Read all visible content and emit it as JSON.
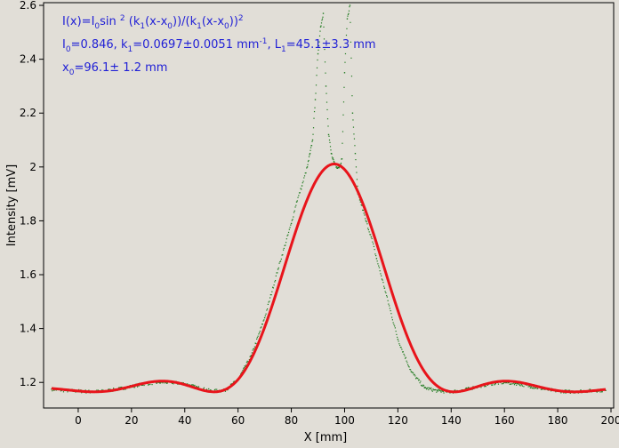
{
  "chart_data": {
    "type": "scatter",
    "xlabel": "X [mm]",
    "ylabel": "Intensity [mV]",
    "xlim": [
      -13,
      201
    ],
    "ylim": [
      1.105,
      2.61
    ],
    "xticks": [
      0,
      20,
      40,
      60,
      80,
      100,
      120,
      140,
      160,
      180,
      200
    ],
    "yticks": [
      1.2,
      1.4,
      1.6,
      1.8,
      2.0,
      2.2,
      2.4,
      2.6
    ],
    "xtick_labels": [
      "0",
      "20",
      "40",
      "60",
      "80",
      "100",
      "120",
      "140",
      "160",
      "180",
      "200"
    ],
    "ytick_labels": [
      "1.2",
      "1.4",
      "1.6",
      "1.8",
      "2",
      "2.2",
      "2.4",
      "2.6"
    ],
    "grid": false,
    "annotations": {
      "formula": {
        "a": "I(x)=I",
        "b": "0",
        "c": "sin ",
        "d": "2",
        "e": " (k",
        "f": "1",
        "g": "(x-x",
        "h": "0",
        "i": "))/(k",
        "j": "1",
        "k": "(x-x",
        "l": "0",
        "m": "))",
        "n": "2"
      },
      "params": {
        "a": "I",
        "b": "0",
        "c": "=0.846,  k",
        "d": "1",
        "e": "=0.0697±0.0051 mm",
        "f": "-1",
        "g": ",   L",
        "h": "1",
        "i": "=45.1±3.3 mm"
      },
      "x0": {
        "a": "x",
        "b": "0",
        "c": "=96.1±   1.2 mm"
      }
    },
    "fit": {
      "I0": 0.846,
      "k1": 0.0697,
      "x0": 96.1,
      "baseline": 1.165
    },
    "series": [
      {
        "kind": "measured",
        "color": "#1f7a1f",
        "x": [
          -10,
          -5,
          0,
          5,
          10,
          15,
          20,
          25,
          30,
          35,
          40,
          45,
          50,
          55,
          60,
          65,
          70,
          75,
          80,
          82,
          84,
          86,
          87,
          88,
          89,
          90,
          91,
          92,
          93,
          94,
          95,
          96,
          97,
          98,
          99,
          100,
          101,
          102,
          103,
          104,
          105,
          106,
          108,
          110,
          112,
          115,
          120,
          125,
          130,
          135,
          140,
          145,
          150,
          155,
          160,
          165,
          170,
          175,
          180,
          185,
          190,
          195,
          198
        ],
        "y": [
          1.175,
          1.17,
          1.168,
          1.165,
          1.168,
          1.175,
          1.185,
          1.195,
          1.2,
          1.2,
          1.195,
          1.18,
          1.168,
          1.17,
          1.21,
          1.3,
          1.44,
          1.62,
          1.79,
          1.87,
          1.93,
          2.0,
          2.05,
          2.1,
          2.25,
          2.42,
          2.52,
          2.57,
          2.3,
          2.12,
          2.05,
          2.02,
          2.0,
          2.0,
          2.03,
          2.35,
          2.55,
          2.6,
          2.2,
          2.05,
          1.9,
          1.87,
          1.8,
          1.74,
          1.66,
          1.55,
          1.36,
          1.24,
          1.18,
          1.168,
          1.165,
          1.172,
          1.185,
          1.195,
          1.2,
          1.195,
          1.185,
          1.175,
          1.168,
          1.165,
          1.168,
          1.17,
          1.17
        ]
      },
      {
        "kind": "fit",
        "color": "#e8141b"
      }
    ]
  }
}
